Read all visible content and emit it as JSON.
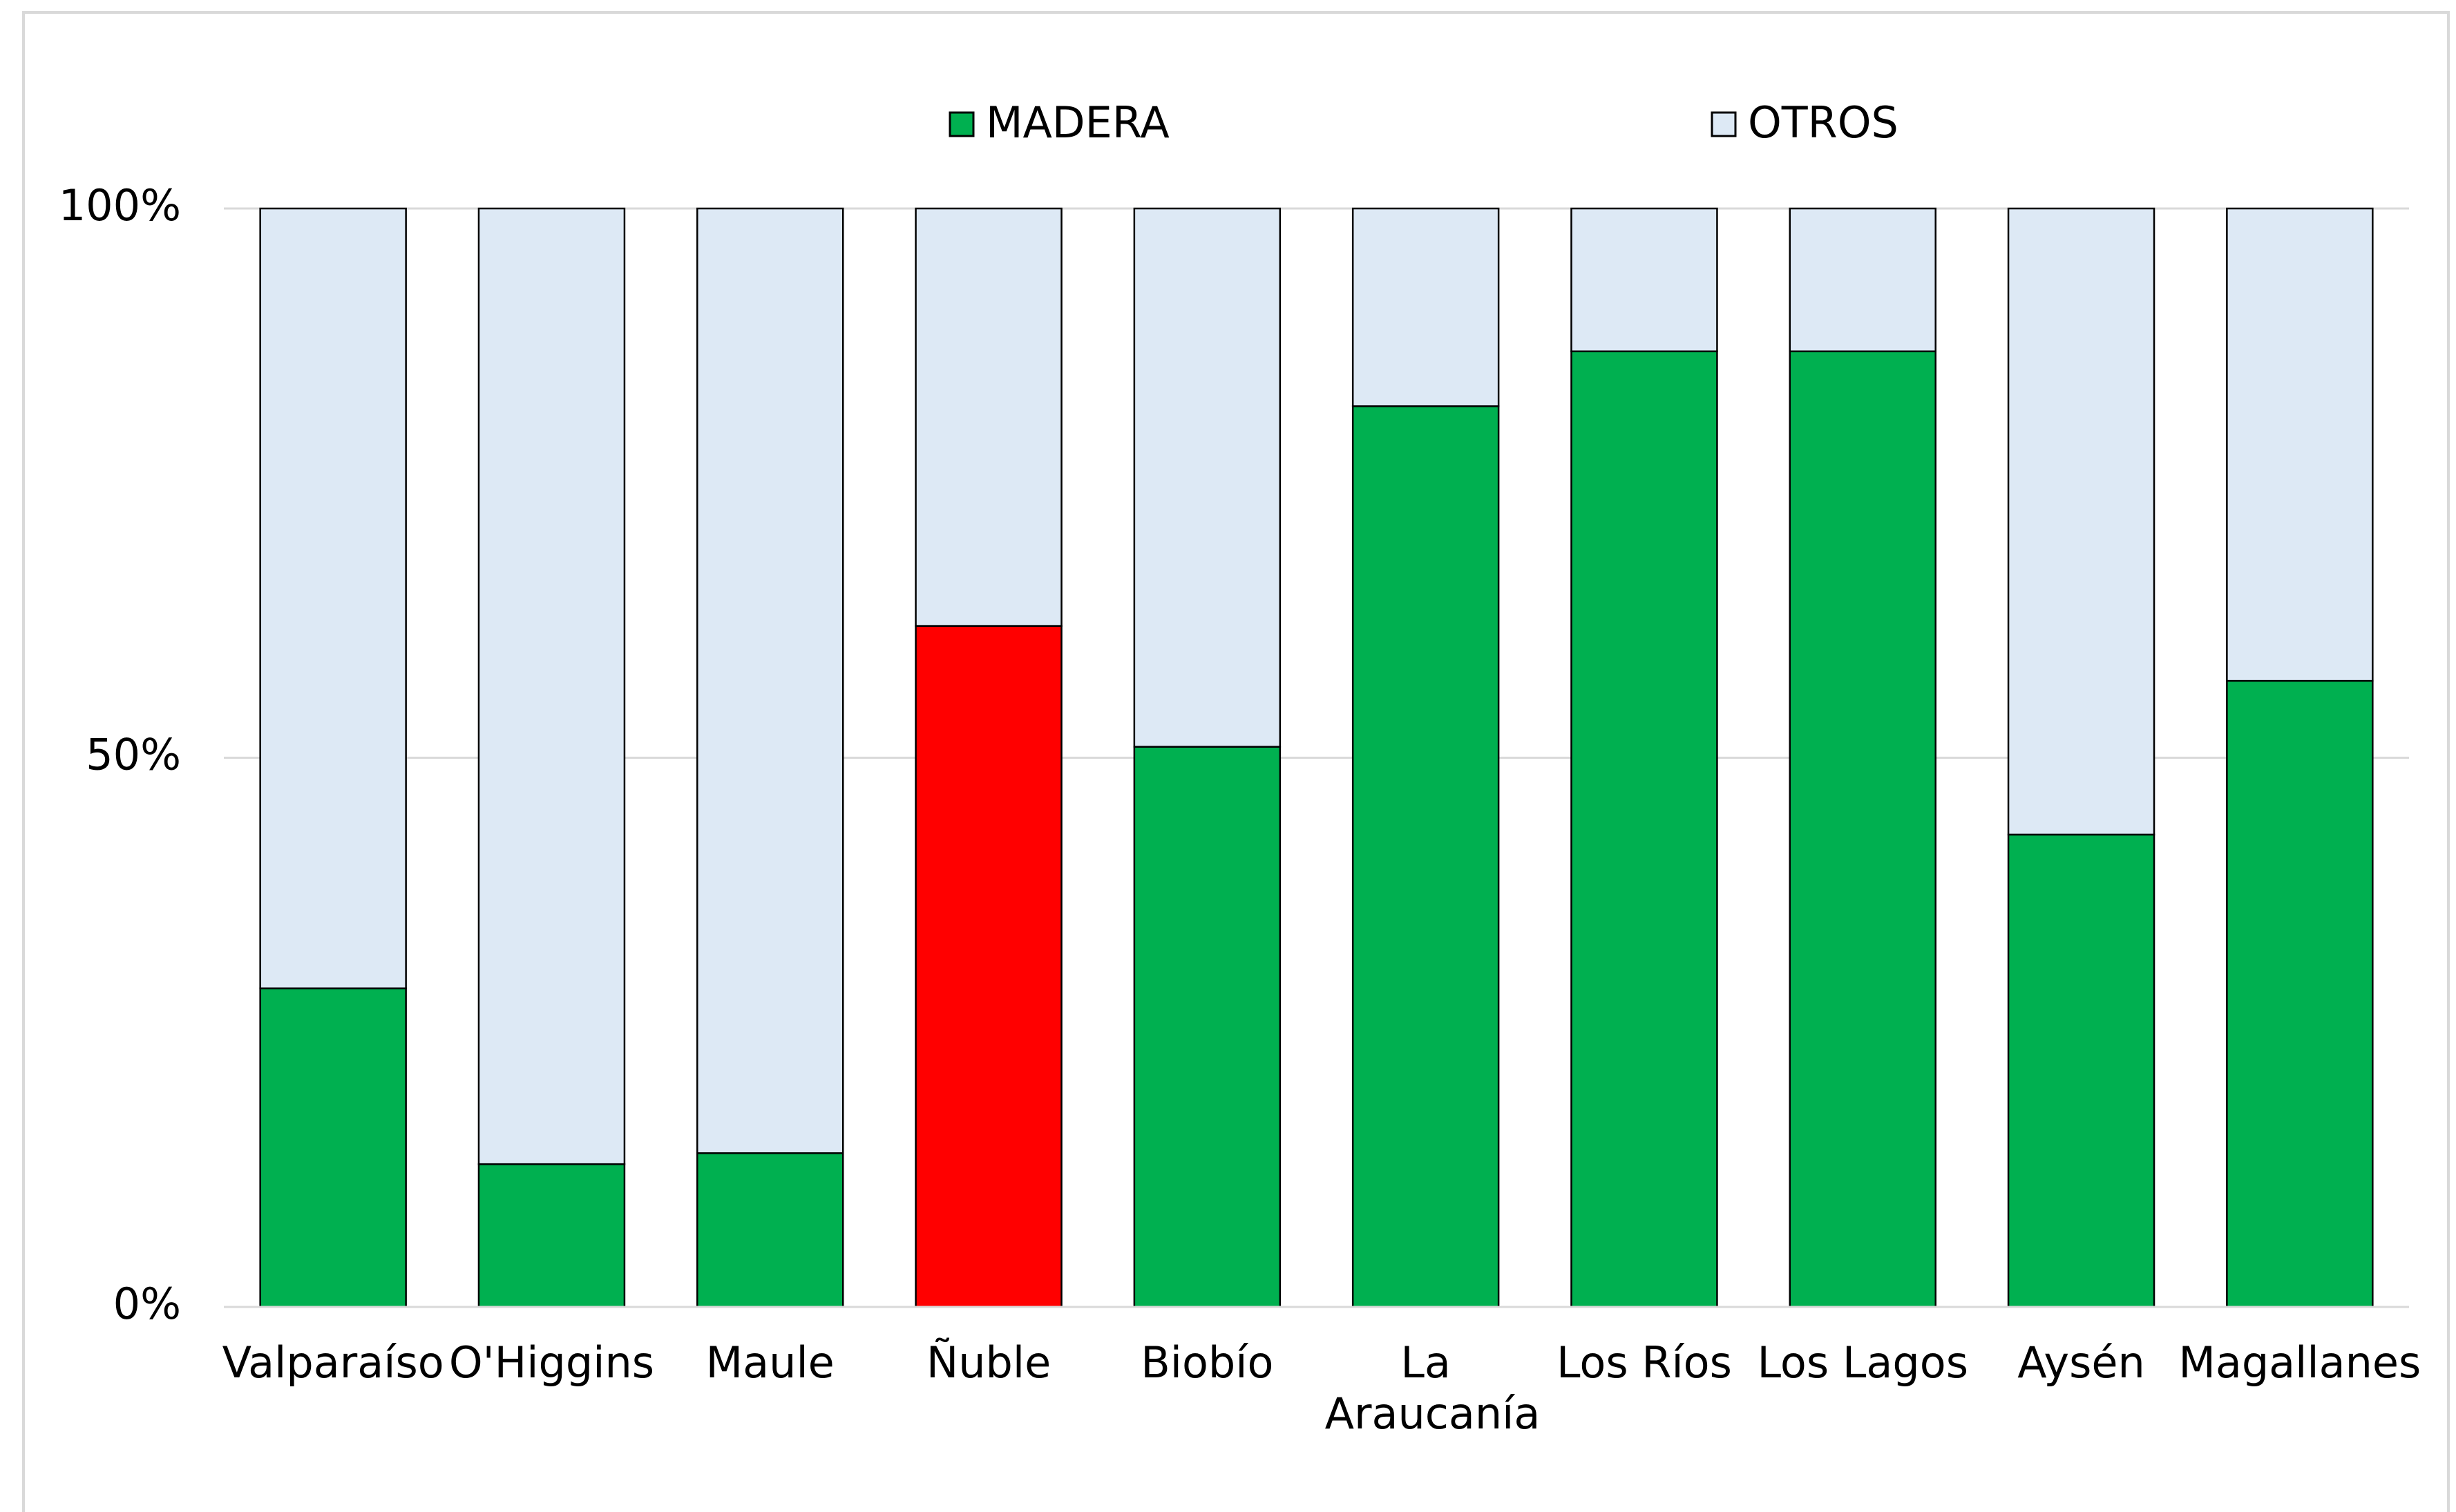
{
  "chart_data": {
    "type": "stacked_bar",
    "categories": [
      "Valparaíso",
      "O'Higgins",
      "Maule",
      "Ñuble",
      "Biobío",
      "La Araucanía",
      "Los Ríos",
      "Los Lagos",
      "Aysén",
      "Magallanes"
    ],
    "series": [
      {
        "name": "MADERA",
        "color": "#00b050",
        "point_colors": [
          "#00b050",
          "#00b050",
          "#00b050",
          "#ff0000",
          "#00b050",
          "#00b050",
          "#00b050",
          "#00b050",
          "#00b050",
          "#00b050"
        ],
        "values": [
          29,
          13,
          14,
          62,
          51,
          82,
          87,
          87,
          43,
          57
        ]
      },
      {
        "name": "OTROS",
        "color": "#dde9f5",
        "values": [
          71,
          87,
          86,
          38,
          49,
          18,
          13,
          13,
          57,
          43
        ]
      }
    ],
    "ylim": [
      0,
      100
    ],
    "yticks": [
      {
        "value": 0,
        "label": "0%"
      },
      {
        "value": 50,
        "label": "50%"
      },
      {
        "value": 100,
        "label": "100%"
      }
    ],
    "grid": true,
    "legend": "top"
  }
}
